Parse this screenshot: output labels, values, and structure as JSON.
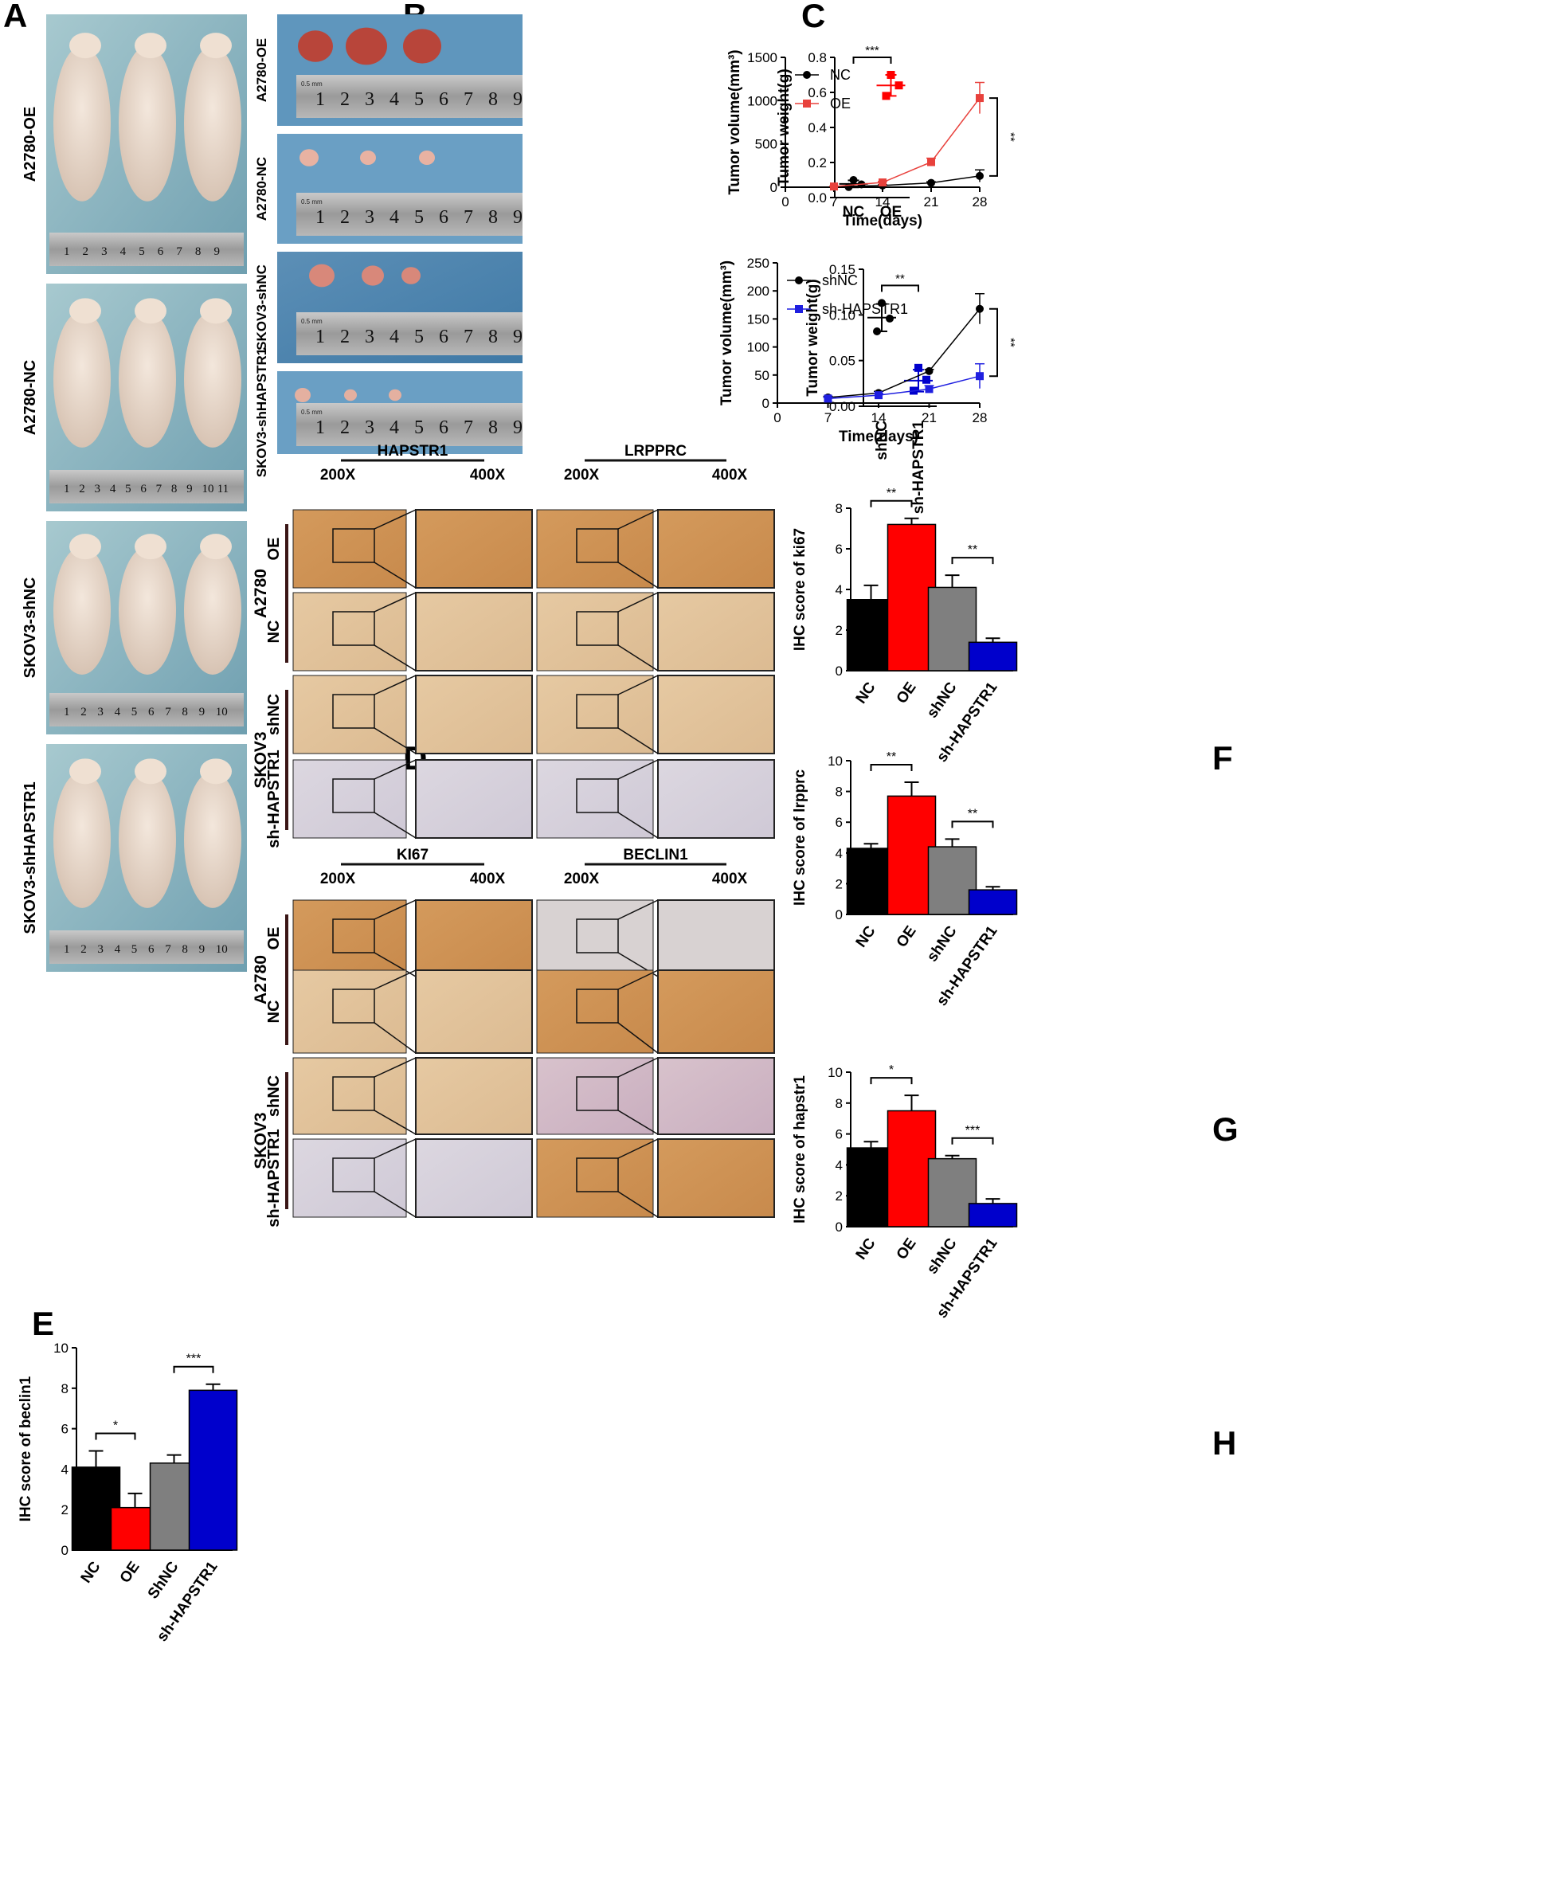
{
  "panel_letters": [
    "A",
    "B",
    "C",
    "D",
    "E",
    "F",
    "G",
    "H"
  ],
  "panelA": {
    "rows": [
      "A2780-OE",
      "A2780-NC",
      "SKOV3-shNC",
      "SKOV3-shHAPSTR1"
    ],
    "ruler_ticks": [
      "1",
      "2",
      "3",
      "4",
      "5",
      "6",
      "7",
      "8",
      "9",
      "10",
      "11"
    ]
  },
  "panelB": {
    "rows": [
      "A2780-OE",
      "A2780-NC",
      "SKOV3-shNC",
      "SKOV3-shHAPSTR1"
    ],
    "ruler_ticks": [
      "1",
      "2",
      "3",
      "4",
      "5",
      "6",
      "7",
      "8",
      "9"
    ],
    "ruler_caption": "0.5 mm"
  },
  "panelD": {
    "groups": [
      {
        "cell_line": "A2780",
        "rows": [
          "OE",
          "NC"
        ]
      },
      {
        "cell_line": "SKOV3",
        "rows": [
          "shNC",
          "sh-HAPSTR1"
        ]
      }
    ],
    "stains_top": [
      "HAPSTR1",
      "LRPPRC"
    ],
    "stains_bottom": [
      "KI67",
      "BECLIN1"
    ],
    "mag_low": "200X",
    "mag_high": "400X"
  },
  "colors": {
    "nc": "#000000",
    "oe": "#ff0000",
    "shnc": "#7f7f7f",
    "sh": "#0000cc",
    "oe_line": "#e8413c",
    "sh_line": "#1f1fe0"
  },
  "chart_data": [
    {
      "id": "C1",
      "panel": "C",
      "type": "scatter",
      "ylabel": "Tumor weight(g)",
      "categories": [
        "NC",
        "OE"
      ],
      "ylim": [
        0,
        0.8
      ],
      "yticks": [
        "0.0",
        "0.2",
        "0.4",
        "0.6",
        "0.8"
      ],
      "groups": [
        {
          "name": "NC",
          "points": [
            0.06,
            0.075,
            0.1
          ],
          "mean": 0.078,
          "sd": 0.02,
          "color": "#000000"
        },
        {
          "name": "OE",
          "points": [
            0.58,
            0.64,
            0.7
          ],
          "mean": 0.64,
          "sd": 0.06,
          "color": "#ff0000"
        }
      ],
      "significance": [
        {
          "from": 0,
          "to": 1,
          "label": "***"
        }
      ]
    },
    {
      "id": "C2",
      "panel": "C",
      "type": "line",
      "xlabel": "Time(days)",
      "ylabel": "Tumor volume(mm³)",
      "x": [
        7,
        14,
        21,
        28
      ],
      "xlim": [
        0,
        28
      ],
      "xticks": [
        "0",
        "7",
        "14",
        "21",
        "28"
      ],
      "ylim": [
        0,
        1500
      ],
      "yticks": [
        "0",
        "500",
        "1000",
        "1500"
      ],
      "series": [
        {
          "name": "NC",
          "values": [
            5,
            20,
            50,
            130
          ],
          "err": [
            3,
            8,
            12,
            70
          ],
          "color": "#000000",
          "marker": "circle"
        },
        {
          "name": "OE",
          "values": [
            8,
            55,
            290,
            1030
          ],
          "err": [
            4,
            12,
            45,
            180
          ],
          "color": "#e8413c",
          "marker": "square"
        }
      ],
      "significance": [
        {
          "label": "**"
        }
      ]
    },
    {
      "id": "C3",
      "panel": "C",
      "type": "scatter",
      "ylabel": "Tumor weight(g)",
      "categories": [
        "shNC",
        "sh-HAPSTR1"
      ],
      "ylim": [
        0,
        0.15
      ],
      "yticks": [
        "0.00",
        "0.05",
        "0.10",
        "0.15"
      ],
      "groups": [
        {
          "name": "shNC",
          "points": [
            0.082,
            0.096,
            0.113
          ],
          "mean": 0.097,
          "sd": 0.015,
          "color": "#000000"
        },
        {
          "name": "sh-HAPSTR1",
          "points": [
            0.017,
            0.029,
            0.042
          ],
          "mean": 0.028,
          "sd": 0.012,
          "color": "#0000cc"
        }
      ],
      "significance": [
        {
          "from": 0,
          "to": 1,
          "label": "**"
        }
      ]
    },
    {
      "id": "C4",
      "panel": "C",
      "type": "line",
      "xlabel": "Time(days)",
      "ylabel": "Tumor volume(mm³)",
      "x": [
        7,
        14,
        21,
        28
      ],
      "xlim": [
        0,
        28
      ],
      "xticks": [
        "0",
        "7",
        "14",
        "21",
        "28"
      ],
      "ylim": [
        0,
        250
      ],
      "yticks": [
        "0",
        "50",
        "100",
        "150",
        "200",
        "250"
      ],
      "series": [
        {
          "name": "shNC",
          "values": [
            10,
            18,
            57,
            168
          ],
          "err": [
            2,
            3,
            3,
            27
          ],
          "color": "#000000",
          "marker": "circle"
        },
        {
          "name": "sh-HAPSTR1",
          "values": [
            8,
            14,
            25,
            48
          ],
          "err": [
            2,
            3,
            6,
            22
          ],
          "color": "#1f1fe0",
          "marker": "square"
        }
      ],
      "significance": [
        {
          "label": "**"
        }
      ]
    },
    {
      "id": "E",
      "panel": "E",
      "type": "bar",
      "ylabel": "IHC score of beclin1",
      "categories": [
        "NC",
        "OE",
        "ShNC",
        "sh-HAPSTR1"
      ],
      "values": [
        4.1,
        2.1,
        4.3,
        7.9
      ],
      "err": [
        0.8,
        0.7,
        0.4,
        0.3
      ],
      "ylim": [
        0,
        10
      ],
      "yticks": [
        "0",
        "2",
        "4",
        "6",
        "8",
        "10"
      ],
      "significance": [
        {
          "from": 0,
          "to": 1,
          "label": "*"
        },
        {
          "from": 2,
          "to": 3,
          "label": "***"
        }
      ]
    },
    {
      "id": "F",
      "panel": "F",
      "type": "bar",
      "ylabel": "IHC score of  ki67",
      "categories": [
        "NC",
        "OE",
        "shNC",
        "sh-HAPSTR1"
      ],
      "values": [
        3.5,
        7.2,
        4.1,
        1.4
      ],
      "err": [
        0.7,
        0.3,
        0.6,
        0.2
      ],
      "ylim": [
        0,
        8
      ],
      "yticks": [
        "0",
        "2",
        "4",
        "6",
        "8"
      ],
      "significance": [
        {
          "from": 0,
          "to": 1,
          "label": "**"
        },
        {
          "from": 2,
          "to": 3,
          "label": "**"
        }
      ]
    },
    {
      "id": "G",
      "panel": "G",
      "type": "bar",
      "ylabel": "IHC score of lrpprc",
      "categories": [
        "NC",
        "OE",
        "shNC",
        "sh-HAPSTR1"
      ],
      "values": [
        4.3,
        7.7,
        4.4,
        1.6
      ],
      "err": [
        0.3,
        0.9,
        0.5,
        0.2
      ],
      "ylim": [
        0,
        10
      ],
      "yticks": [
        "0",
        "2",
        "4",
        "6",
        "8",
        "10"
      ],
      "significance": [
        {
          "from": 0,
          "to": 1,
          "label": "**"
        },
        {
          "from": 2,
          "to": 3,
          "label": "**"
        }
      ]
    },
    {
      "id": "H",
      "panel": "H",
      "type": "bar",
      "ylabel": "IHC score of  hapstr1",
      "categories": [
        "NC",
        "OE",
        "shNC",
        "sh-HAPSTR1"
      ],
      "values": [
        5.1,
        7.5,
        4.4,
        1.5
      ],
      "err": [
        0.4,
        1.0,
        0.2,
        0.3
      ],
      "ylim": [
        0,
        10
      ],
      "yticks": [
        "0",
        "2",
        "4",
        "6",
        "8",
        "10"
      ],
      "significance": [
        {
          "from": 0,
          "to": 1,
          "label": "*"
        },
        {
          "from": 2,
          "to": 3,
          "label": "***"
        }
      ]
    }
  ]
}
